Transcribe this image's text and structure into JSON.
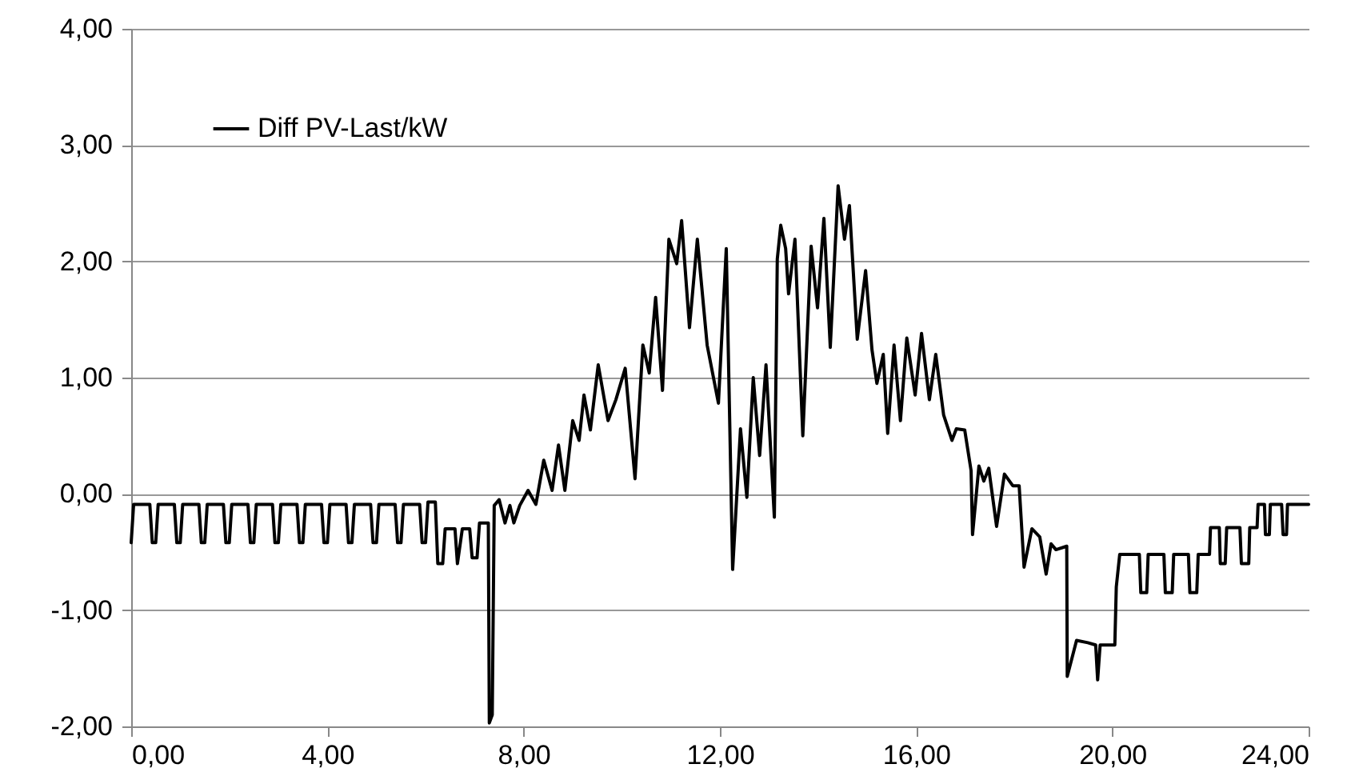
{
  "chart_data": {
    "type": "line",
    "x": [
      0,
      0.05,
      0.38,
      0.43,
      0.5,
      0.55,
      0.88,
      0.93,
      1,
      1.05,
      1.38,
      1.43,
      1.5,
      1.55,
      1.88,
      1.93,
      2,
      2.05,
      2.38,
      2.43,
      2.5,
      2.55,
      2.88,
      2.93,
      3,
      3.05,
      3.38,
      3.43,
      3.5,
      3.55,
      3.88,
      3.93,
      4,
      4.05,
      4.38,
      4.43,
      4.5,
      4.55,
      4.88,
      4.93,
      5,
      5.05,
      5.38,
      5.43,
      5.5,
      5.55,
      5.88,
      5.93,
      6.0,
      6.05,
      6.2,
      6.25,
      6.35,
      6.4,
      6.6,
      6.65,
      6.75,
      6.9,
      6.95,
      7.05,
      7.1,
      7.28,
      7.3,
      7.36,
      7.4,
      7.5,
      7.62,
      7.72,
      7.8,
      7.92,
      8.09,
      8.25,
      8.41,
      8.58,
      8.71,
      8.84,
      9.0,
      9.13,
      9.23,
      9.36,
      9.52,
      9.72,
      9.88,
      10.07,
      10.27,
      10.43,
      10.56,
      10.69,
      10.83,
      10.96,
      11.12,
      11.22,
      11.38,
      11.54,
      11.74,
      11.97,
      12.13,
      12.26,
      12.42,
      12.55,
      12.68,
      12.81,
      12.94,
      13.11,
      13.17,
      13.24,
      13.34,
      13.4,
      13.53,
      13.69,
      13.86,
      13.99,
      14.12,
      14.25,
      14.41,
      14.54,
      14.64,
      14.8,
      14.97,
      15.1,
      15.2,
      15.33,
      15.42,
      15.55,
      15.68,
      15.81,
      15.98,
      16.11,
      16.27,
      16.4,
      16.56,
      16.73,
      16.82,
      16.99,
      17.12,
      17.15,
      17.28,
      17.38,
      17.48,
      17.64,
      17.8,
      17.97,
      18.1,
      18.2,
      18.36,
      18.52,
      18.65,
      18.75,
      18.85,
      19.07,
      19.08,
      19.27,
      19.5,
      19.66,
      19.7,
      19.75,
      20.05,
      20.08,
      20.15,
      20.55,
      20.58,
      20.7,
      20.73,
      21.05,
      21.08,
      21.22,
      21.25,
      21.55,
      21.58,
      21.72,
      21.75,
      21.98,
      22.0,
      22.18,
      22.2,
      22.3,
      22.33,
      22.6,
      22.63,
      22.78,
      22.8,
      22.95,
      22.97,
      23.1,
      23.12,
      23.2,
      23.22,
      23.45,
      23.48,
      23.55,
      23.57,
      24.0
    ],
    "series": [
      {
        "name": "Diff PV-Last/kW",
        "color": "#000000",
        "values": [
          -0.42,
          -0.09,
          -0.09,
          -0.42,
          -0.42,
          -0.09,
          -0.09,
          -0.42,
          -0.42,
          -0.09,
          -0.09,
          -0.42,
          -0.42,
          -0.09,
          -0.09,
          -0.42,
          -0.42,
          -0.09,
          -0.09,
          -0.42,
          -0.42,
          -0.09,
          -0.09,
          -0.42,
          -0.42,
          -0.09,
          -0.09,
          -0.42,
          -0.42,
          -0.09,
          -0.09,
          -0.42,
          -0.42,
          -0.09,
          -0.09,
          -0.42,
          -0.42,
          -0.09,
          -0.09,
          -0.42,
          -0.42,
          -0.09,
          -0.09,
          -0.42,
          -0.42,
          -0.09,
          -0.09,
          -0.42,
          -0.42,
          -0.07,
          -0.07,
          -0.6,
          -0.6,
          -0.3,
          -0.3,
          -0.6,
          -0.3,
          -0.3,
          -0.55,
          -0.55,
          -0.25,
          -0.25,
          -1.97,
          -1.9,
          -0.1,
          -0.05,
          -0.25,
          -0.1,
          -0.25,
          -0.1,
          0.03,
          -0.09,
          0.29,
          0.03,
          0.42,
          0.03,
          0.63,
          0.46,
          0.85,
          0.55,
          1.11,
          0.63,
          0.81,
          1.08,
          0.13,
          1.28,
          1.04,
          1.69,
          0.89,
          2.19,
          1.98,
          2.35,
          1.43,
          2.19,
          1.28,
          0.78,
          2.11,
          -0.65,
          0.56,
          -0.03,
          1.0,
          0.33,
          1.11,
          -0.2,
          2.02,
          2.31,
          2.11,
          1.72,
          2.19,
          0.5,
          2.13,
          1.6,
          2.37,
          1.26,
          2.65,
          2.19,
          2.48,
          1.33,
          1.92,
          1.24,
          0.95,
          1.2,
          0.52,
          1.28,
          0.63,
          1.34,
          0.85,
          1.38,
          0.81,
          1.2,
          0.68,
          0.46,
          0.56,
          0.55,
          0.2,
          -0.35,
          0.24,
          0.11,
          0.22,
          -0.28,
          0.17,
          0.07,
          0.07,
          -0.63,
          -0.3,
          -0.37,
          -0.69,
          -0.43,
          -0.48,
          -0.45,
          -1.57,
          -1.26,
          -1.28,
          -1.3,
          -1.6,
          -1.3,
          -1.3,
          -0.8,
          -0.52,
          -0.52,
          -0.85,
          -0.85,
          -0.52,
          -0.52,
          -0.85,
          -0.85,
          -0.52,
          -0.52,
          -0.85,
          -0.85,
          -0.52,
          -0.52,
          -0.29,
          -0.29,
          -0.6,
          -0.6,
          -0.29,
          -0.29,
          -0.6,
          -0.6,
          -0.29,
          -0.29,
          -0.09,
          -0.09,
          -0.35,
          -0.35,
          -0.09,
          -0.09,
          -0.35,
          -0.35,
          -0.09,
          -0.09
        ]
      }
    ],
    "xlim": [
      0,
      24
    ],
    "xticks": [
      {
        "value": 0,
        "label": "0,00"
      },
      {
        "value": 4,
        "label": "4,00"
      },
      {
        "value": 8,
        "label": "8,00"
      },
      {
        "value": 12,
        "label": "12,00"
      },
      {
        "value": 16,
        "label": "16,00"
      },
      {
        "value": 20,
        "label": "20,00"
      },
      {
        "value": 24,
        "label": "24,00"
      }
    ],
    "ylim": [
      -2,
      4
    ],
    "yticks": [
      {
        "value": -2,
        "label": "-2,00"
      },
      {
        "value": -1,
        "label": "-1,00"
      },
      {
        "value": 0,
        "label": "0,00"
      },
      {
        "value": 1,
        "label": "1,00"
      },
      {
        "value": 2,
        "label": "2,00"
      },
      {
        "value": 3,
        "label": "3,00"
      },
      {
        "value": 4,
        "label": "4,00"
      }
    ],
    "grid": "y",
    "legend": "top left",
    "marker": "none",
    "line_style": "solid"
  }
}
